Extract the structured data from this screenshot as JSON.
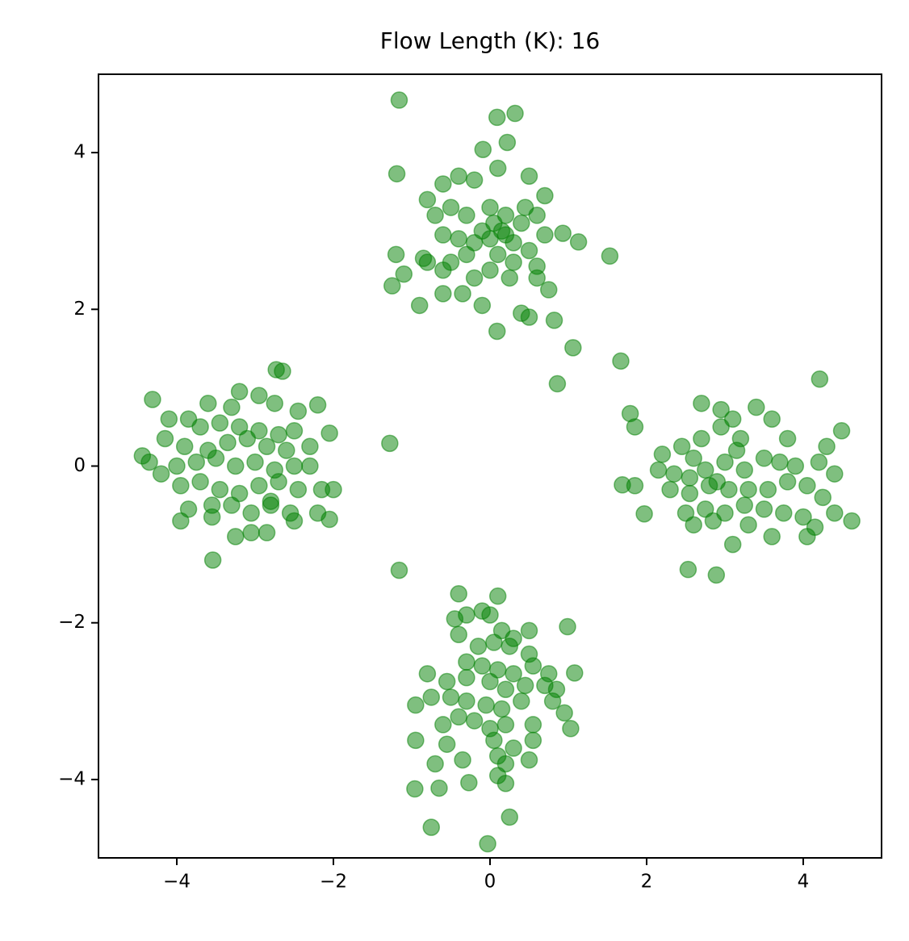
{
  "chart_data": {
    "type": "scatter",
    "title": "Flow Length (K): 16",
    "color": "green",
    "opacity": 0.5,
    "xlim": [
      -5,
      5
    ],
    "ylim": [
      -5,
      5
    ],
    "xticks": [
      {
        "value": -4,
        "label": "−4"
      },
      {
        "value": -2,
        "label": "−2"
      },
      0,
      2,
      4
    ],
    "yticks": [
      {
        "value": -4,
        "label": "−4"
      },
      {
        "value": -2,
        "label": "−2"
      },
      0,
      2,
      4
    ],
    "x": [
      -1.16,
      -1.19,
      0.09,
      0.32,
      0.22,
      -0.09,
      1.53,
      1.13,
      0.93,
      0.82,
      1.06,
      1.67,
      0.86,
      0.09,
      -1.28,
      -1.16,
      4.21,
      -0.03,
      -0.75,
      0.25,
      -0.96,
      -0.65,
      -0.27,
      -3.54,
      4.62,
      4.49,
      2.89,
      2.53,
      1.97,
      1.69,
      1.79,
      -4.44,
      -4.31,
      -2.73,
      -2.65,
      0.99,
      1.08,
      1.03,
      -0.4,
      0.1,
      -0.6,
      -0.4,
      -0.2,
      0.1,
      0.5,
      0.7,
      -0.8,
      -0.5,
      -0.3,
      0.0,
      0.2,
      0.4,
      0.6,
      -0.7,
      -0.6,
      -0.4,
      -0.2,
      0.0,
      0.15,
      0.3,
      0.5,
      0.7,
      -0.8,
      -0.5,
      -0.3,
      0.1,
      0.3,
      0.6,
      -0.6,
      -0.2,
      0.0,
      0.25,
      0.6,
      -0.6,
      -0.35,
      -0.1,
      0.4,
      0.5,
      0.75,
      -0.9,
      -1.2,
      -1.25,
      -1.1,
      0.05,
      0.2,
      -0.1,
      0.45,
      -0.85,
      -0.45,
      -0.3,
      -0.1,
      0.0,
      0.15,
      0.3,
      0.5,
      -0.4,
      -0.15,
      0.05,
      0.25,
      0.5,
      -0.3,
      -0.1,
      0.1,
      0.3,
      0.55,
      0.75,
      -0.8,
      -0.55,
      -0.3,
      0.0,
      0.2,
      0.45,
      0.7,
      0.85,
      -0.95,
      -0.75,
      -0.5,
      -0.3,
      -0.05,
      0.15,
      0.4,
      0.8,
      -0.4,
      -0.2,
      0.0,
      0.2,
      0.55,
      0.95,
      -0.6,
      -0.95,
      -0.55,
      0.05,
      0.3,
      0.55,
      -0.7,
      -0.35,
      0.1,
      0.2,
      0.5,
      0.1,
      0.2,
      -4.1,
      -3.85,
      -3.6,
      -3.3,
      -3.2,
      -2.95,
      -2.75,
      -2.45,
      -2.2,
      -3.7,
      -3.45,
      -3.2,
      -2.95,
      -2.7,
      -2.5,
      -4.15,
      -3.9,
      -3.6,
      -3.35,
      -3.1,
      -2.85,
      -2.6,
      -2.3,
      -2.05,
      -4.35,
      -4.0,
      -3.75,
      -3.5,
      -3.25,
      -3.0,
      -2.75,
      -2.5,
      -2.3,
      -4.2,
      -3.95,
      -3.7,
      -3.45,
      -3.2,
      -2.95,
      -2.7,
      -2.45,
      -2.15,
      -3.85,
      -3.55,
      -3.3,
      -3.05,
      -2.8,
      -2.55,
      -2.2,
      -2.05,
      -3.95,
      -3.55,
      -3.25,
      -3.05,
      -2.85,
      -2.5,
      -2.0,
      -2.8,
      2.2,
      2.45,
      2.7,
      2.95,
      3.2,
      3.4,
      3.6,
      2.7,
      2.95,
      3.1,
      3.8,
      4.3,
      4.2,
      4.4,
      2.15,
      2.35,
      2.55,
      2.75,
      3.0,
      3.25,
      3.5,
      3.7,
      3.9,
      2.3,
      2.55,
      2.8,
      3.05,
      3.3,
      3.55,
      3.8,
      4.05,
      2.5,
      2.75,
      3.0,
      3.25,
      3.5,
      3.75,
      4.0,
      4.25,
      4.4,
      2.6,
      2.85,
      3.3,
      3.6,
      4.05,
      4.15,
      3.1,
      2.9,
      3.15,
      2.6,
      1.85,
      1.85
    ],
    "values": [
      4.67,
      3.73,
      4.45,
      4.5,
      4.13,
      4.04,
      2.68,
      2.86,
      2.97,
      1.86,
      1.51,
      1.34,
      1.05,
      1.72,
      0.29,
      -1.33,
      1.11,
      -4.82,
      -4.61,
      -4.48,
      -4.12,
      -4.11,
      -4.04,
      -1.2,
      -0.7,
      0.45,
      -1.39,
      -1.32,
      -0.61,
      -0.24,
      0.67,
      0.13,
      0.85,
      1.23,
      1.21,
      -2.05,
      -2.64,
      -3.35,
      -1.63,
      -1.66,
      3.6,
      3.7,
      3.65,
      3.8,
      3.7,
      3.45,
      3.4,
      3.3,
      3.2,
      3.3,
      3.2,
      3.1,
      3.2,
      3.2,
      2.95,
      2.9,
      2.85,
      2.9,
      3.0,
      2.85,
      2.75,
      2.95,
      2.6,
      2.6,
      2.7,
      2.7,
      2.6,
      2.55,
      2.5,
      2.4,
      2.5,
      2.4,
      2.4,
      2.2,
      2.2,
      2.05,
      1.95,
      1.9,
      2.25,
      2.05,
      2.7,
      2.3,
      2.45,
      3.1,
      2.95,
      3.0,
      3.3,
      2.65,
      -1.95,
      -1.9,
      -1.85,
      -1.9,
      -2.1,
      -2.2,
      -2.1,
      -2.15,
      -2.3,
      -2.25,
      -2.3,
      -2.4,
      -2.5,
      -2.55,
      -2.6,
      -2.65,
      -2.55,
      -2.65,
      -2.65,
      -2.75,
      -2.7,
      -2.75,
      -2.85,
      -2.8,
      -2.8,
      -2.85,
      -3.05,
      -2.95,
      -2.95,
      -3.0,
      -3.05,
      -3.1,
      -3.0,
      -3.0,
      -3.2,
      -3.25,
      -3.35,
      -3.3,
      -3.3,
      -3.15,
      -3.3,
      -3.5,
      -3.55,
      -3.5,
      -3.6,
      -3.5,
      -3.8,
      -3.75,
      -3.7,
      -3.8,
      -3.75,
      -3.95,
      -4.05,
      0.6,
      0.6,
      0.8,
      0.75,
      0.95,
      0.9,
      0.8,
      0.7,
      0.78,
      0.5,
      0.55,
      0.5,
      0.45,
      0.4,
      0.45,
      0.35,
      0.25,
      0.2,
      0.3,
      0.35,
      0.25,
      0.2,
      0.25,
      0.42,
      0.05,
      0.0,
      0.05,
      0.1,
      0.0,
      0.05,
      -0.05,
      0.0,
      0.0,
      -0.1,
      -0.25,
      -0.2,
      -0.3,
      -0.35,
      -0.25,
      -0.2,
      -0.3,
      -0.3,
      -0.55,
      -0.5,
      -0.5,
      -0.6,
      -0.5,
      -0.6,
      -0.6,
      -0.68,
      -0.7,
      -0.65,
      -0.9,
      -0.85,
      -0.85,
      -0.7,
      -0.3,
      -0.45,
      0.15,
      0.25,
      0.35,
      0.5,
      0.35,
      0.75,
      0.6,
      0.8,
      0.72,
      0.6,
      0.35,
      0.25,
      0.05,
      -0.1,
      -0.05,
      -0.1,
      -0.15,
      -0.05,
      0.05,
      -0.05,
      0.1,
      0.05,
      0.0,
      -0.3,
      -0.35,
      -0.25,
      -0.3,
      -0.3,
      -0.3,
      -0.2,
      -0.25,
      -0.6,
      -0.55,
      -0.6,
      -0.5,
      -0.55,
      -0.6,
      -0.65,
      -0.4,
      -0.6,
      -0.75,
      -0.7,
      -0.75,
      -0.9,
      -0.9,
      -0.78,
      -1.0,
      -0.2,
      0.2,
      0.1,
      0.5,
      -0.25
    ]
  }
}
